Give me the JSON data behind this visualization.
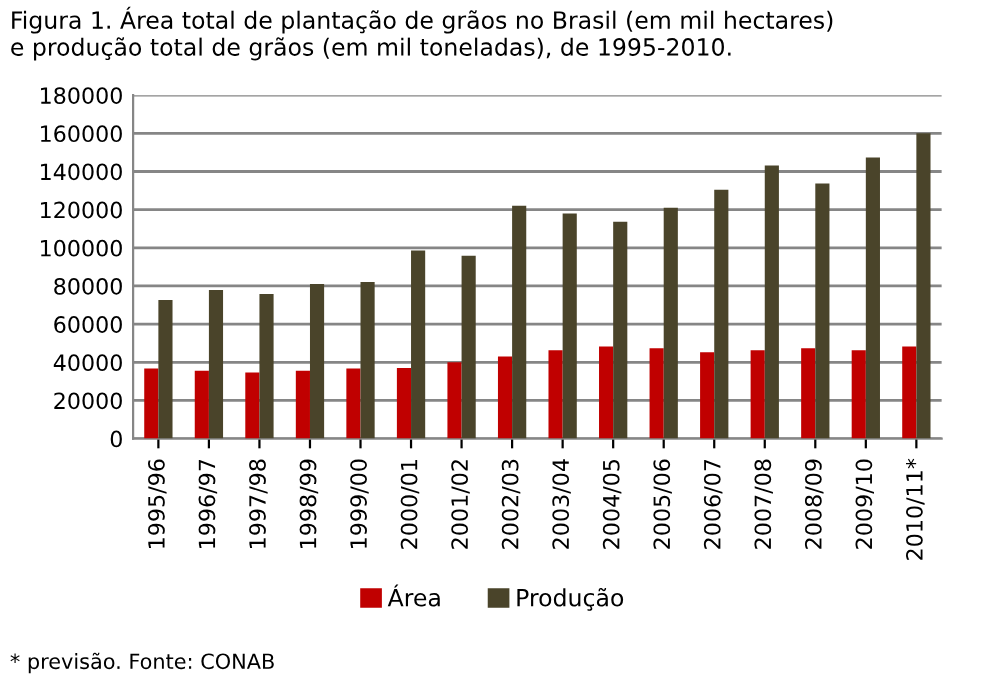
{
  "chart_data": {
    "type": "bar",
    "title": "Figura 1. Área total de plantação de grãos no Brasil (em mil hectares)\ne produção total de grãos (em mil toneladas), de 1995-2010.",
    "categories": [
      "1995/96",
      "1996/97",
      "1997/98",
      "1998/99",
      "1999/00",
      "2000/01",
      "2001/02",
      "2002/03",
      "2003/04",
      "2004/05",
      "2005/06",
      "2006/07",
      "2007/08",
      "2008/09",
      "2009/10",
      "2010/11*"
    ],
    "series": [
      {
        "name": "Área",
        "color": "#c00000",
        "values": [
          36800,
          35500,
          34700,
          35500,
          36800,
          37000,
          40000,
          43000,
          46300,
          48300,
          47400,
          45300,
          46300,
          47400,
          46300,
          48300
        ]
      },
      {
        "name": "Produção",
        "color": "#4a442a",
        "values": [
          72600,
          77900,
          75800,
          81000,
          82100,
          98600,
          95800,
          122000,
          118000,
          113700,
          121000,
          130500,
          143200,
          133700,
          147400,
          160000
        ]
      }
    ],
    "ylim": [
      0,
      180000
    ],
    "yticks": [
      0,
      20000,
      40000,
      60000,
      80000,
      100000,
      120000,
      140000,
      160000,
      180000
    ],
    "grid": "y",
    "legend": "bottom",
    "annotations": [
      "* previsão. Fonte: CONAB"
    ]
  }
}
